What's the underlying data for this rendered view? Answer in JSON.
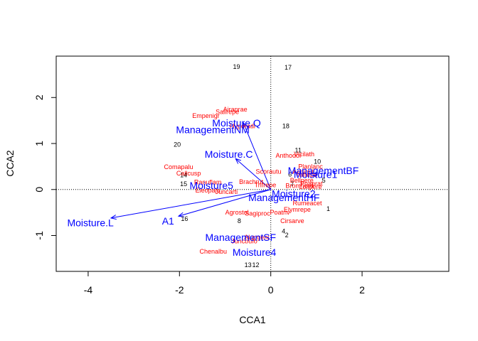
{
  "chart_data": {
    "type": "scatter",
    "title": "",
    "xlabel": "CCA1",
    "ylabel": "CCA2",
    "xlim": [
      -4.7,
      3.9
    ],
    "ylim": [
      -1.78,
      2.9
    ],
    "x_ticks": [
      -4,
      -2,
      0,
      2
    ],
    "y_ticks": [
      -1,
      0,
      1,
      2
    ],
    "reference_lines": {
      "x": 0,
      "y": 0,
      "style": "dotted"
    },
    "colors": {
      "sites": "#000000",
      "species": "#ff0000",
      "environment": "#0000ff"
    },
    "sites": [
      {
        "label": "19",
        "x": -0.75,
        "y": 2.67
      },
      {
        "label": "17",
        "x": 0.38,
        "y": 2.65
      },
      {
        "label": "18",
        "x": 0.33,
        "y": 1.38
      },
      {
        "label": "20",
        "x": -2.05,
        "y": 0.98
      },
      {
        "label": "11",
        "x": 0.6,
        "y": 0.85
      },
      {
        "label": "10",
        "x": 1.02,
        "y": 0.61
      },
      {
        "label": "14",
        "x": -1.91,
        "y": 0.31
      },
      {
        "label": "15",
        "x": -1.91,
        "y": 0.12
      },
      {
        "label": "16",
        "x": -1.89,
        "y": -0.64
      },
      {
        "label": "8",
        "x": -0.69,
        "y": -0.68
      },
      {
        "label": "1",
        "x": 1.26,
        "y": -0.42
      },
      {
        "label": "4",
        "x": 0.28,
        "y": -0.91
      },
      {
        "label": "2",
        "x": 0.35,
        "y": -0.99
      },
      {
        "label": "5",
        "x": 1.16,
        "y": 0.2
      },
      {
        "label": "6",
        "x": 0.42,
        "y": 0.33
      },
      {
        "label": "7",
        "x": 0.47,
        "y": 0.12
      },
      {
        "label": "13",
        "x": -0.5,
        "y": -1.64
      },
      {
        "label": "12",
        "x": -0.33,
        "y": -1.64
      }
    ],
    "species": [
      {
        "label": "Airaprae",
        "x": -0.78,
        "y": 1.74
      },
      {
        "label": "Empenigr",
        "x": -1.42,
        "y": 1.6
      },
      {
        "label": "Salirepe",
        "x": -0.95,
        "y": 1.69
      },
      {
        "label": "Hyporadi",
        "x": -0.62,
        "y": 1.38
      },
      {
        "label": "Anthodor",
        "x": 0.39,
        "y": 0.74
      },
      {
        "label": "Vicilath",
        "x": 0.73,
        "y": 0.77
      },
      {
        "label": "Planlanc",
        "x": 0.87,
        "y": 0.5
      },
      {
        "label": "Bellpere",
        "x": 0.68,
        "y": 0.2
      },
      {
        "label": "Trifrepe",
        "x": 0.78,
        "y": 0.32
      },
      {
        "label": "Achimill",
        "x": 0.72,
        "y": 0.38
      },
      {
        "label": "Lolipere",
        "x": 0.87,
        "y": 0.06
      },
      {
        "label": "Poaprat",
        "x": 0.89,
        "y": 0.13
      },
      {
        "label": "Bromhord",
        "x": 0.63,
        "y": 0.08
      },
      {
        "label": "Scorautu",
        "x": -0.05,
        "y": 0.39
      },
      {
        "label": "Brachrut",
        "x": -0.43,
        "y": 0.17
      },
      {
        "label": "Trifrepe",
        "x": -0.12,
        "y": 0.1
      },
      {
        "label": "Comapalu",
        "x": -2.02,
        "y": 0.49
      },
      {
        "label": "Callcusp",
        "x": -1.8,
        "y": 0.35
      },
      {
        "label": "Ranuflam",
        "x": -1.38,
        "y": 0.16
      },
      {
        "label": "Eleopalu",
        "x": -1.38,
        "y": -0.02
      },
      {
        "label": "Juncarti",
        "x": -0.97,
        "y": -0.05
      },
      {
        "label": "Rumeacet",
        "x": 0.8,
        "y": -0.3
      },
      {
        "label": "Elymrepe",
        "x": 0.58,
        "y": -0.44
      },
      {
        "label": "Agrostol",
        "x": -0.74,
        "y": -0.5
      },
      {
        "label": "Sagiproc",
        "x": -0.29,
        "y": -0.52
      },
      {
        "label": "Poatriv",
        "x": 0.2,
        "y": -0.5
      },
      {
        "label": "Cirsarve",
        "x": 0.47,
        "y": -0.68
      },
      {
        "label": "Alopgeni",
        "x": -0.31,
        "y": -1.04
      },
      {
        "label": "Juncbufo",
        "x": -0.58,
        "y": -1.12
      },
      {
        "label": "Chenalbu",
        "x": -1.26,
        "y": -1.35
      }
    ],
    "environment": [
      {
        "label": "Moisture.L",
        "x": -3.5,
        "y": -0.62,
        "arrow": true,
        "label_x": -3.95,
        "label_y": -0.72
      },
      {
        "label": "A1",
        "x": -2.02,
        "y": -0.58,
        "arrow": true,
        "label_x": -2.25,
        "label_y": -0.68
      },
      {
        "label": "Moisture.Q",
        "x": -0.6,
        "y": 1.45,
        "arrow": true,
        "label_x": -0.75,
        "label_y": 1.45
      },
      {
        "label": "ManagementNM",
        "x": -0.6,
        "y": 1.3,
        "arrow": false,
        "label_x": -1.27,
        "label_y": 1.3
      },
      {
        "label": "Moisture.C",
        "x": -0.77,
        "y": 0.67,
        "arrow": true,
        "label_x": -0.92,
        "label_y": 0.77
      },
      {
        "label": "Moisture5",
        "x": -1.3,
        "y": 0.09,
        "arrow": false,
        "label_x": -1.3,
        "label_y": 0.09
      },
      {
        "label": "ManagementBF",
        "x": 0.0,
        "y": 0.0,
        "arrow": false,
        "label_x": 1.15,
        "label_y": 0.41
      },
      {
        "label": "Moisture1",
        "x": 0.0,
        "y": 0.0,
        "arrow": false,
        "label_x": 0.98,
        "label_y": 0.33
      },
      {
        "label": "Moisture2",
        "x": 0.0,
        "y": 0.0,
        "arrow": false,
        "label_x": 0.5,
        "label_y": -0.09
      },
      {
        "label": "ManagementHF",
        "x": 0.0,
        "y": 0.0,
        "arrow": false,
        "label_x": 0.29,
        "label_y": -0.17
      },
      {
        "label": "ManagementSF",
        "x": -0.66,
        "y": -1.04,
        "arrow": false,
        "label_x": -0.66,
        "label_y": -1.04
      },
      {
        "label": "Moisture4",
        "x": -0.36,
        "y": -1.36,
        "arrow": false,
        "label_x": -0.36,
        "label_y": -1.36
      }
    ]
  }
}
